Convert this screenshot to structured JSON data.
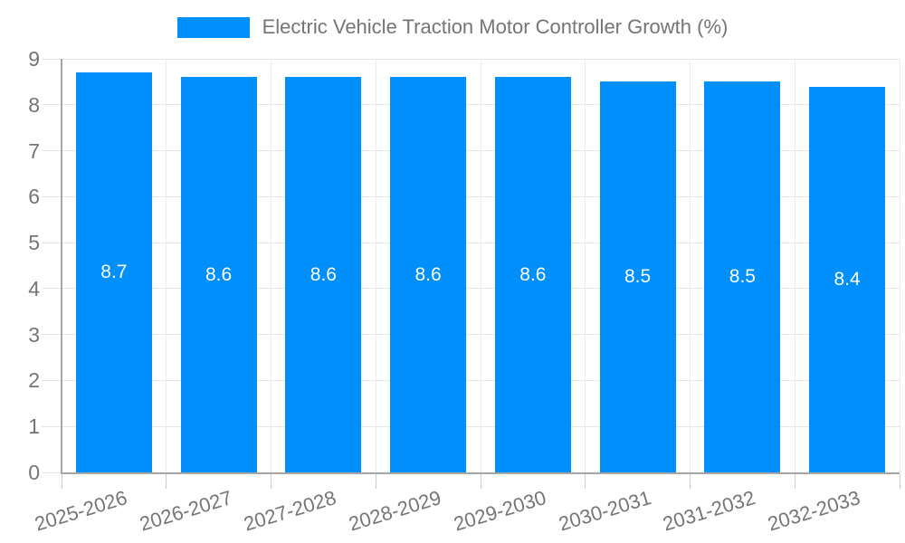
{
  "chart_data": {
    "type": "bar",
    "title": "Electric Vehicle Traction Motor Controller Growth (%)",
    "categories": [
      "2025-2026",
      "2026-2027",
      "2027-2028",
      "2028-2029",
      "2029-2030",
      "2030-2031",
      "2031-2032",
      "2032-2033"
    ],
    "values": [
      8.7,
      8.6,
      8.6,
      8.6,
      8.6,
      8.5,
      8.5,
      8.4
    ],
    "value_labels": [
      "8.7",
      "8.6",
      "8.6",
      "8.6",
      "8.6",
      "8.5",
      "8.5",
      "8.4"
    ],
    "xlabel": "",
    "ylabel": "",
    "ylim": [
      0,
      9
    ],
    "yticks": [
      0,
      1,
      2,
      3,
      4,
      5,
      6,
      7,
      8,
      9
    ],
    "grid": true,
    "legend_position": "top",
    "bar_color": "#008ffb",
    "value_label_color": "#ffffff",
    "axis_text_color": "#757575",
    "grid_color": "#e6e6e6",
    "axis_line_color": "#a6a6a6"
  }
}
